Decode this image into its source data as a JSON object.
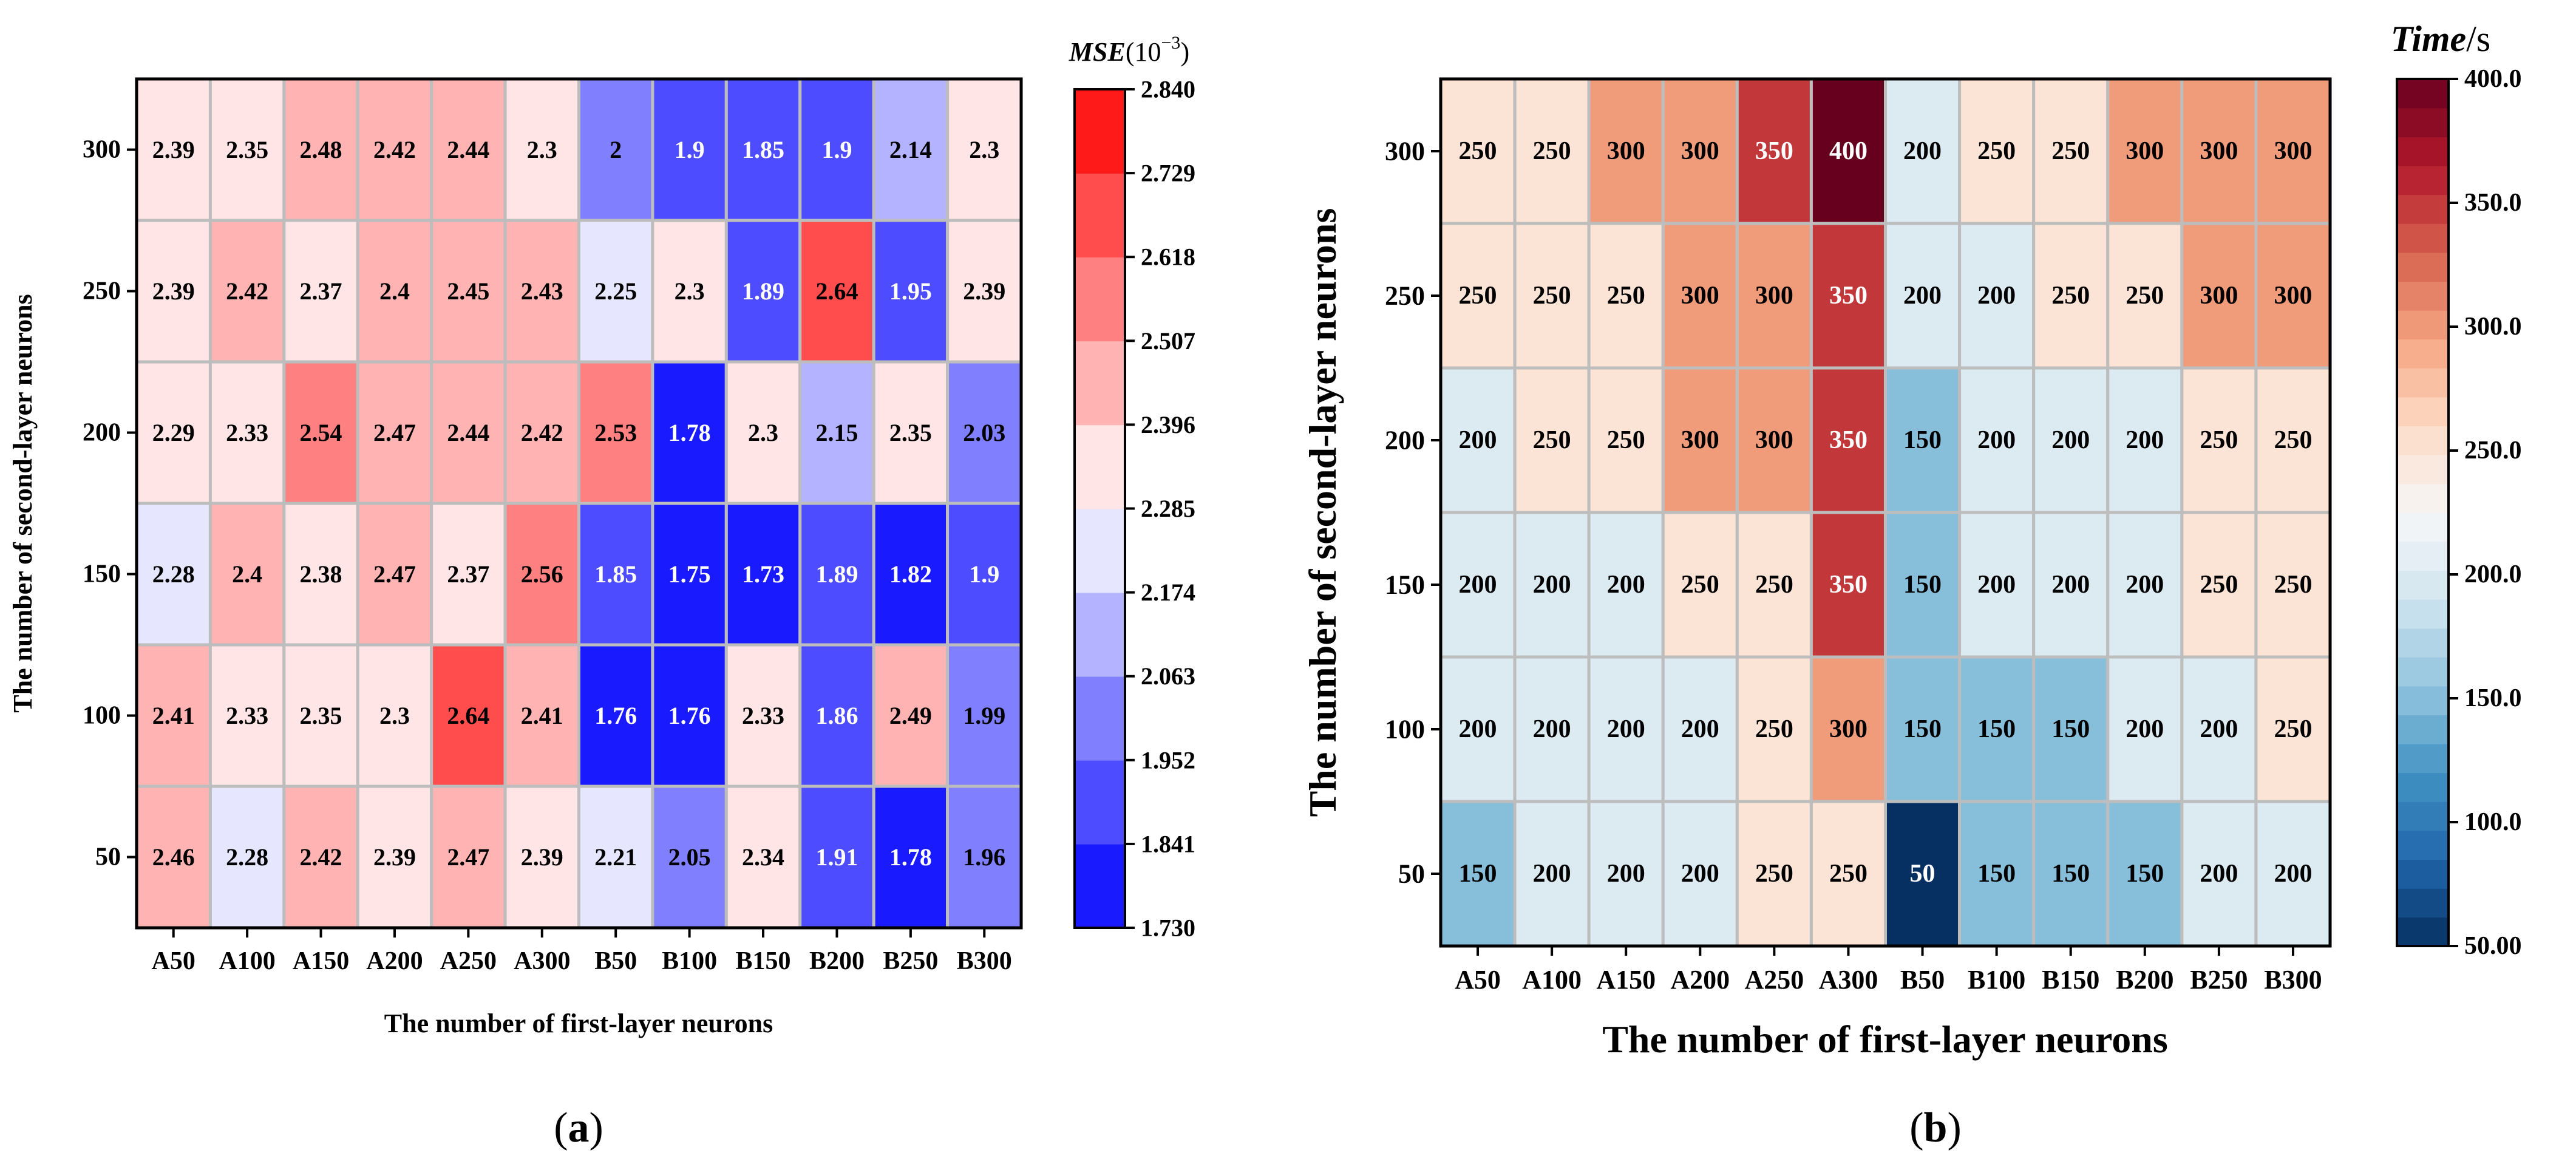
{
  "panels": [
    {
      "caption_open": "(",
      "caption_letter": "a",
      "caption_close": ")"
    },
    {
      "caption_open": "(",
      "caption_letter": "b",
      "caption_close": ")"
    }
  ],
  "chart_data": [
    {
      "type": "heatmap",
      "xlabel": "The number of first-layer neurons",
      "ylabel": "The number of second-layer neurons",
      "x_categories": [
        "A50",
        "A100",
        "A150",
        "A200",
        "A250",
        "A300",
        "B50",
        "B100",
        "B150",
        "B200",
        "B250",
        "B300"
      ],
      "y_categories": [
        "300",
        "250",
        "200",
        "150",
        "100",
        "50"
      ],
      "values": [
        [
          "2.39",
          "2.35",
          "2.48",
          "2.42",
          "2.44",
          "2.3",
          "2",
          "1.9",
          "1.85",
          "1.9",
          "2.14",
          "2.3"
        ],
        [
          "2.39",
          "2.42",
          "2.37",
          "2.4",
          "2.45",
          "2.43",
          "2.25",
          "2.3",
          "1.89",
          "2.64",
          "1.95",
          "2.39"
        ],
        [
          "2.29",
          "2.33",
          "2.54",
          "2.47",
          "2.44",
          "2.42",
          "2.53",
          "1.78",
          "2.3",
          "2.15",
          "2.35",
          "2.03"
        ],
        [
          "2.28",
          "2.4",
          "2.38",
          "2.47",
          "2.37",
          "2.56",
          "1.85",
          "1.75",
          "1.73",
          "1.89",
          "1.82",
          "1.9"
        ],
        [
          "2.41",
          "2.33",
          "2.35",
          "2.3",
          "2.64",
          "2.41",
          "1.76",
          "1.76",
          "2.33",
          "1.86",
          "2.49",
          "1.99"
        ],
        [
          "2.46",
          "2.28",
          "2.42",
          "2.39",
          "2.47",
          "2.39",
          "2.21",
          "2.05",
          "2.34",
          "1.91",
          "1.78",
          "1.96"
        ]
      ],
      "colorbar": {
        "title_main": "MSE",
        "title_unit": "(10",
        "title_exp": "−3",
        "title_close": ")",
        "range": [
          1.73,
          2.84
        ],
        "levels": 10,
        "ticks": [
          "1.730",
          "1.841",
          "1.952",
          "2.063",
          "2.174",
          "2.285",
          "2.396",
          "2.507",
          "2.618",
          "2.729",
          "2.840"
        ],
        "colormap": "bwr"
      }
    },
    {
      "type": "heatmap",
      "xlabel": "The number of first-layer neurons",
      "ylabel": "The number of second-layer neurons",
      "x_categories": [
        "A50",
        "A100",
        "A150",
        "A200",
        "A250",
        "A300",
        "B50",
        "B100",
        "B150",
        "B200",
        "B250",
        "B300"
      ],
      "y_categories": [
        "300",
        "250",
        "200",
        "150",
        "100",
        "50"
      ],
      "values": [
        [
          "250",
          "250",
          "300",
          "300",
          "350",
          "400",
          "200",
          "250",
          "250",
          "300",
          "300",
          "300"
        ],
        [
          "250",
          "250",
          "250",
          "300",
          "300",
          "350",
          "200",
          "200",
          "250",
          "250",
          "300",
          "300"
        ],
        [
          "200",
          "250",
          "250",
          "300",
          "300",
          "350",
          "150",
          "200",
          "200",
          "200",
          "250",
          "250"
        ],
        [
          "200",
          "200",
          "200",
          "250",
          "250",
          "350",
          "150",
          "200",
          "200",
          "200",
          "250",
          "250"
        ],
        [
          "200",
          "200",
          "200",
          "200",
          "250",
          "300",
          "150",
          "150",
          "150",
          "200",
          "200",
          "250"
        ],
        [
          "150",
          "200",
          "200",
          "200",
          "250",
          "250",
          "50",
          "150",
          "150",
          "150",
          "200",
          "200"
        ]
      ],
      "colorbar": {
        "title_main": "Time",
        "title_unit": "/s",
        "range": [
          50,
          400
        ],
        "ticks": [
          "50.00",
          "100.0",
          "150.0",
          "200.0",
          "250.0",
          "300.0",
          "350.0",
          "400.0"
        ],
        "colormap": "RdBu_r"
      }
    }
  ]
}
